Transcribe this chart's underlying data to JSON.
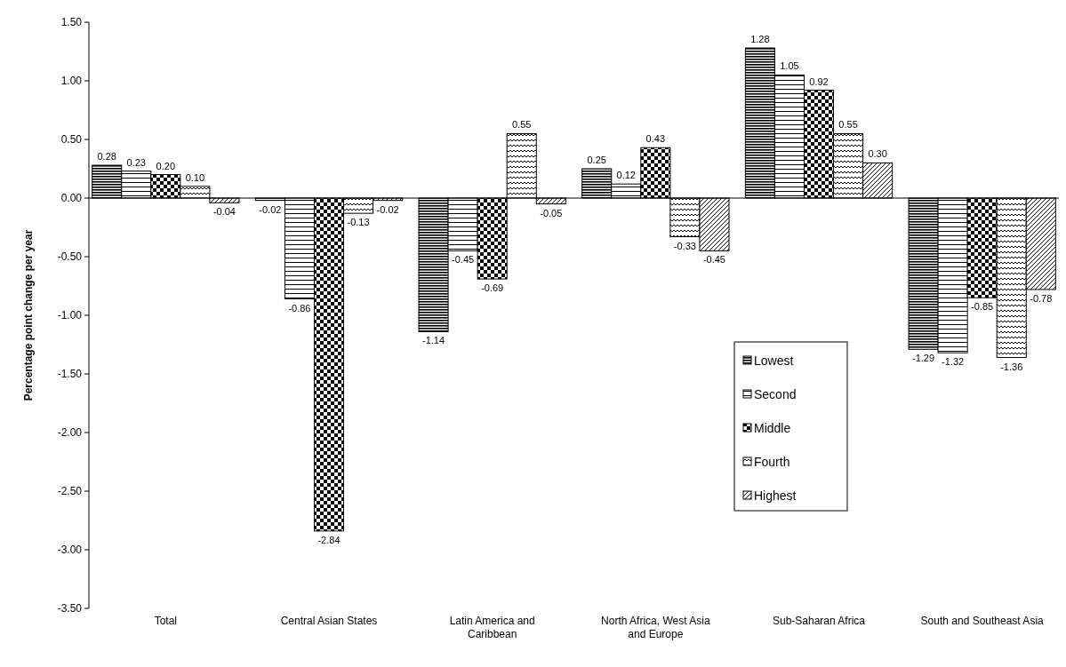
{
  "chart_data": {
    "type": "bar",
    "ylabel": "Percentage point change per year",
    "categories": [
      "Total",
      "Central Asian States",
      "Latin America and Caribbean",
      "North Africa, West Asia and Europe",
      "Sub-Saharan Africa",
      "South and Southeast Asia"
    ],
    "series": [
      {
        "name": "Lowest",
        "color": "#000000",
        "values": [
          0.28,
          -0.02,
          -1.14,
          0.25,
          1.28,
          -1.29
        ],
        "value_labels": [
          "0.28",
          "-0.02",
          "-1.14",
          "0.25",
          "1.28",
          "-1.29"
        ]
      },
      {
        "name": "Second",
        "color": "#000000",
        "values": [
          0.23,
          -0.86,
          -0.45,
          0.12,
          1.05,
          -1.32
        ],
        "value_labels": [
          "0.23",
          "-0.86",
          "-0.45",
          "0.12",
          "1.05",
          "-1.32"
        ]
      },
      {
        "name": "Middle",
        "color": "#000000",
        "values": [
          0.2,
          -2.84,
          -0.69,
          0.43,
          0.92,
          -0.85
        ],
        "value_labels": [
          "0.20",
          "-2.84",
          "-0.69",
          "0.43",
          "0.92",
          "-0.85"
        ]
      },
      {
        "name": "Fourth",
        "color": "#000000",
        "values": [
          0.1,
          -0.13,
          0.55,
          -0.33,
          0.55,
          -1.36
        ],
        "value_labels": [
          "0.10",
          "-0.13",
          "0.55",
          "-0.33",
          "0.55",
          "-1.36"
        ]
      },
      {
        "name": "Highest",
        "color": "#000000",
        "values": [
          -0.04,
          -0.02,
          -0.05,
          -0.45,
          0.3,
          -0.78
        ],
        "value_labels": [
          "-0.04",
          "-0.02",
          "-0.05",
          "-0.45",
          "0.30",
          "-0.78"
        ]
      }
    ],
    "ylim": [
      -3.5,
      1.5
    ],
    "yticks": [
      {
        "value": 1.5,
        "label": "1.50"
      },
      {
        "value": 1,
        "label": "1.00"
      },
      {
        "value": 0.5,
        "label": "0.50"
      },
      {
        "value": 0,
        "label": "0.00"
      },
      {
        "value": -0.5,
        "label": "-0.50"
      },
      {
        "value": -1,
        "label": "-1.00"
      },
      {
        "value": -1.5,
        "label": "-1.50"
      },
      {
        "value": -2,
        "label": "-2.00"
      },
      {
        "value": -2.5,
        "label": "-2.50"
      },
      {
        "value": -3,
        "label": "-3.00"
      },
      {
        "value": -3.5,
        "label": "-3.50"
      }
    ],
    "legend": "right"
  }
}
